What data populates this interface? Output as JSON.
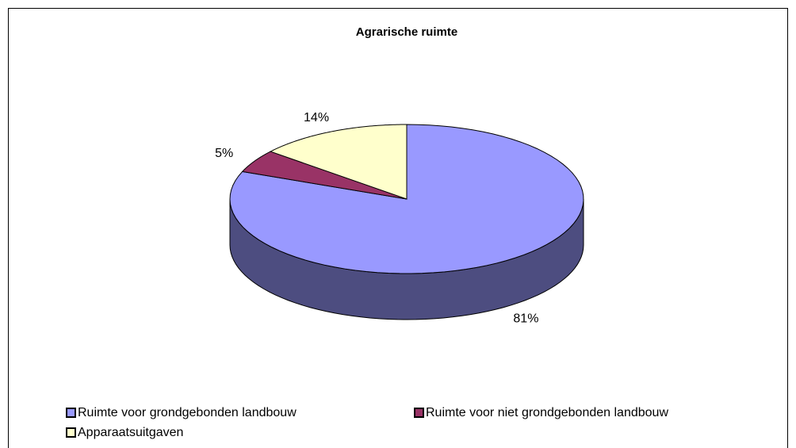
{
  "chart_data": {
    "type": "pie",
    "title": "Agrarische ruimte",
    "categories": [
      "Ruimte voor grondgebonden landbouw",
      "Ruimte voor niet grondgebonden landbouw",
      "Apparaatsuitgaven"
    ],
    "values": [
      81,
      5,
      14
    ],
    "value_labels": [
      "81%",
      "5%",
      "14%"
    ],
    "colors": [
      "#9999ff",
      "#993366",
      "#ffffcc"
    ]
  }
}
